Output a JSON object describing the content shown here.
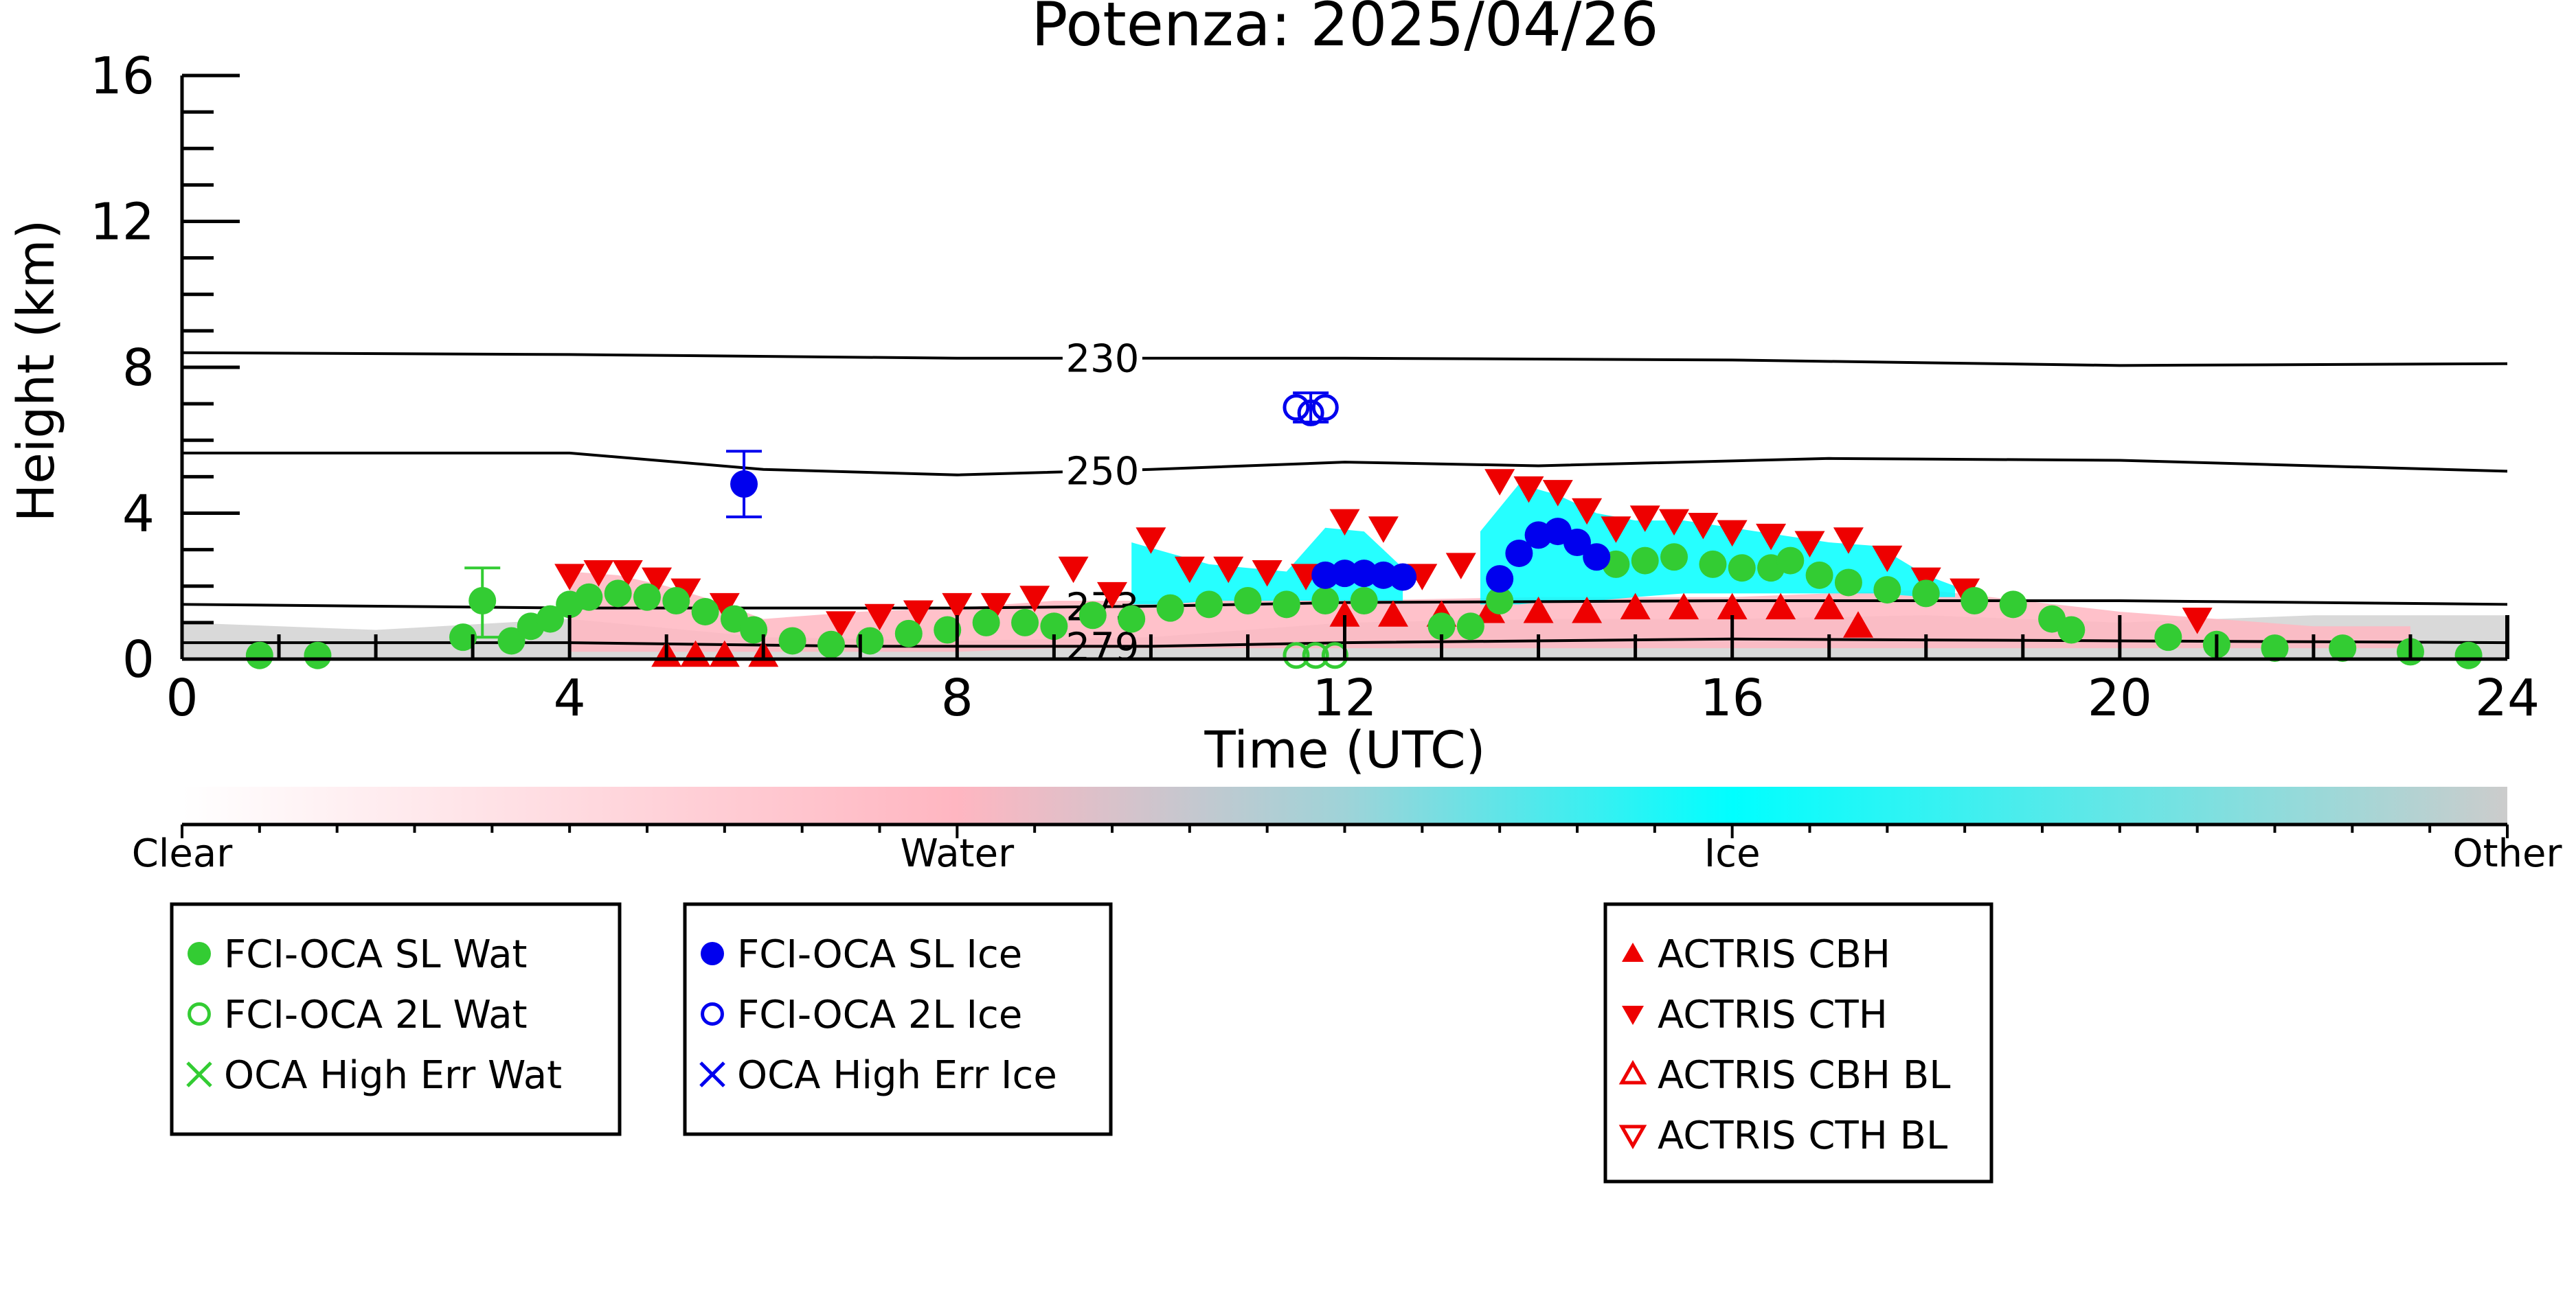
{
  "chart_data": {
    "type": "scatter",
    "title": "Potenza: 2025/04/26",
    "xlabel": "Time (UTC)",
    "ylabel": "Height (km)",
    "xlim": [
      0,
      24
    ],
    "ylim": [
      0,
      16
    ],
    "x_ticks": [
      "0",
      "4",
      "8",
      "12",
      "16",
      "20",
      "24"
    ],
    "y_ticks": [
      "0",
      "4",
      "8",
      "12",
      "16"
    ],
    "colorbar": {
      "labels": [
        "Clear",
        "Water",
        "Ice",
        "Other"
      ],
      "colors": [
        "#ffffff",
        "#ffb6c1",
        "#00ffff",
        "#cccccc"
      ]
    },
    "isotherms": [
      {
        "label": "230",
        "points": [
          [
            0,
            8.4
          ],
          [
            4,
            8.35
          ],
          [
            8,
            8.25
          ],
          [
            12,
            8.25
          ],
          [
            16,
            8.2
          ],
          [
            20,
            8.05
          ],
          [
            24,
            8.1
          ]
        ]
      },
      {
        "label": "250",
        "points": [
          [
            0,
            5.65
          ],
          [
            4,
            5.65
          ],
          [
            6,
            5.2
          ],
          [
            8,
            5.05
          ],
          [
            10,
            5.2
          ],
          [
            12,
            5.4
          ],
          [
            14,
            5.3
          ],
          [
            17,
            5.5
          ],
          [
            20,
            5.45
          ],
          [
            24,
            5.15
          ]
        ]
      },
      {
        "label": "273",
        "points": [
          [
            0,
            1.5
          ],
          [
            4,
            1.4
          ],
          [
            8,
            1.4
          ],
          [
            10,
            1.45
          ],
          [
            12,
            1.55
          ],
          [
            16,
            1.6
          ],
          [
            20,
            1.6
          ],
          [
            24,
            1.5
          ]
        ]
      },
      {
        "label": "279",
        "points": [
          [
            0,
            0.45
          ],
          [
            4,
            0.45
          ],
          [
            7,
            0.35
          ],
          [
            10,
            0.35
          ],
          [
            12,
            0.45
          ],
          [
            16,
            0.55
          ],
          [
            20,
            0.5
          ],
          [
            24,
            0.45
          ]
        ]
      }
    ],
    "series": [
      {
        "name": "FCI-OCA SL Wat",
        "marker": "filled-circle",
        "color": "#33cc33",
        "x": [
          0.8,
          1.4,
          2.9,
          3.1,
          3.4,
          3.6,
          3.8,
          4.0,
          4.2,
          4.5,
          4.8,
          5.1,
          5.4,
          5.7,
          5.9,
          6.3,
          6.7,
          7.1,
          7.5,
          7.9,
          8.3,
          8.7,
          9.0,
          9.4,
          9.8,
          10.2,
          10.6,
          11.0,
          11.4,
          11.8,
          12.2,
          13.0,
          13.3,
          13.6,
          14.8,
          15.1,
          15.4,
          15.8,
          16.1,
          16.4,
          16.6,
          16.9,
          17.2,
          17.6,
          18.0,
          18.5,
          18.9,
          19.3,
          19.5,
          20.5,
          21.0,
          21.6,
          22.3,
          23.0,
          23.6
        ],
        "y": [
          0.1,
          0.1,
          0.6,
          1.6,
          0.5,
          0.9,
          1.1,
          1.5,
          1.7,
          1.8,
          1.7,
          1.6,
          1.3,
          1.1,
          0.8,
          0.5,
          0.4,
          0.5,
          0.7,
          0.8,
          1.0,
          1.0,
          0.9,
          1.2,
          1.1,
          1.4,
          1.5,
          1.6,
          1.5,
          1.6,
          1.6,
          0.9,
          0.9,
          1.6,
          2.6,
          2.7,
          2.8,
          2.6,
          2.5,
          2.5,
          2.7,
          2.3,
          2.1,
          1.9,
          1.8,
          1.6,
          1.5,
          1.1,
          0.8,
          0.6,
          0.4,
          0.3,
          0.3,
          0.2,
          0.1
        ]
      },
      {
        "name": "FCI-OCA 2L Wat",
        "marker": "open-circle",
        "color": "#33cc33",
        "x": [
          11.5,
          11.7,
          11.9
        ],
        "y": [
          0.1,
          0.1,
          0.1
        ]
      },
      {
        "name": "OCA High Err Wat",
        "marker": "x",
        "color": "#33cc33",
        "x": [],
        "y": []
      },
      {
        "name": "FCI-OCA SL Ice",
        "marker": "filled-circle",
        "color": "#0000ee",
        "x": [
          5.8,
          11.8,
          12.0,
          12.2,
          12.4,
          12.6,
          13.6,
          13.8,
          14.0,
          14.2,
          14.4,
          14.6
        ],
        "y": [
          4.8,
          2.3,
          2.35,
          2.35,
          2.3,
          2.25,
          2.2,
          2.9,
          3.4,
          3.5,
          3.2,
          2.8
        ]
      },
      {
        "name": "FCI-OCA 2L Ice",
        "marker": "open-circle",
        "color": "#0000ee",
        "x": [
          11.5,
          11.65,
          11.8
        ],
        "y": [
          6.9,
          6.75,
          6.9
        ]
      },
      {
        "name": "OCA High Err Ice",
        "marker": "x",
        "color": "#0000ee",
        "x": [],
        "y": []
      },
      {
        "name": "ACTRIS CBH",
        "marker": "filled-triangle-up",
        "color": "#ee0000",
        "x": [
          5.0,
          5.3,
          5.6,
          6.0,
          12.0,
          12.5,
          13.0,
          13.5,
          14.0,
          14.5,
          15.0,
          15.5,
          16.0,
          16.5,
          17.0,
          17.3
        ],
        "y": [
          0.1,
          0.1,
          0.1,
          0.1,
          1.2,
          1.2,
          1.2,
          1.3,
          1.3,
          1.3,
          1.4,
          1.4,
          1.4,
          1.4,
          1.4,
          0.9
        ]
      },
      {
        "name": "ACTRIS CTH",
        "marker": "filled-triangle-down",
        "color": "#ee0000",
        "x": [
          4.0,
          4.3,
          4.6,
          4.9,
          5.2,
          5.6,
          6.8,
          7.2,
          7.6,
          8.0,
          8.4,
          8.8,
          9.2,
          9.6,
          10.0,
          10.4,
          10.8,
          11.2,
          11.6,
          12.0,
          12.4,
          12.8,
          13.2,
          13.6,
          13.9,
          14.2,
          14.5,
          14.8,
          15.1,
          15.4,
          15.7,
          16.0,
          16.4,
          16.8,
          17.2,
          17.6,
          18.0,
          18.4,
          20.8
        ],
        "y": [
          2.3,
          2.4,
          2.4,
          2.2,
          1.9,
          1.5,
          1.0,
          1.2,
          1.3,
          1.5,
          1.5,
          1.7,
          2.5,
          1.8,
          3.3,
          2.5,
          2.5,
          2.4,
          2.3,
          3.8,
          3.6,
          2.3,
          2.6,
          4.9,
          4.7,
          4.6,
          4.1,
          3.6,
          3.9,
          3.8,
          3.7,
          3.5,
          3.4,
          3.2,
          3.3,
          2.8,
          2.2,
          1.9,
          1.1
        ]
      },
      {
        "name": "ACTRIS CBH BL",
        "marker": "open-triangle-up",
        "color": "#ee0000",
        "x": [],
        "y": []
      },
      {
        "name": "ACTRIS CTH BL",
        "marker": "open-triangle-down",
        "color": "#ee0000",
        "x": [],
        "y": []
      }
    ],
    "error_bars": [
      {
        "series": "FCI-OCA SL Wat",
        "x": 3.1,
        "low": 0.6,
        "high": 2.5
      },
      {
        "series": "FCI-OCA SL Ice",
        "x": 5.8,
        "low": 3.9,
        "high": 5.7
      },
      {
        "series": "FCI-OCA 2L Ice",
        "x": 11.65,
        "low": 6.5,
        "high": 7.3
      }
    ],
    "regions": [
      {
        "class": "Ice",
        "color": "#00ffff",
        "x": [
          9.8,
          10.2,
          10.6,
          11.0,
          11.4,
          11.8,
          12.2,
          12.6
        ],
        "top": [
          3.2,
          2.9,
          2.6,
          2.5,
          2.4,
          3.6,
          3.5,
          2.5
        ],
        "bottom": [
          1.5,
          1.5,
          1.6,
          1.6,
          1.6,
          1.6,
          1.6,
          1.6
        ]
      },
      {
        "class": "Ice",
        "color": "#00ffff",
        "x": [
          13.4,
          13.8,
          14.2,
          14.6,
          15.0,
          15.5,
          16.0,
          16.5,
          17.0,
          17.5,
          18.0,
          18.3
        ],
        "top": [
          3.5,
          4.8,
          4.5,
          4.0,
          3.8,
          3.8,
          3.6,
          3.4,
          3.2,
          3.1,
          2.3,
          2.0
        ],
        "bottom": [
          1.5,
          1.5,
          1.6,
          1.6,
          1.7,
          1.8,
          1.8,
          1.8,
          1.8,
          1.8,
          1.7,
          1.7
        ]
      },
      {
        "class": "Water",
        "color": "#ffb6c1",
        "x": [
          4.0,
          4.5,
          5.0,
          5.5,
          6.0,
          7.0,
          8.0,
          9.0,
          10.0,
          12.0,
          14.0,
          16.0,
          18.0,
          20.0,
          22.0,
          23.0
        ],
        "top": [
          2.4,
          2.3,
          2.0,
          1.6,
          1.1,
          1.3,
          1.4,
          1.6,
          1.6,
          1.6,
          1.7,
          1.7,
          1.9,
          1.3,
          0.9,
          0.9
        ],
        "bottom": [
          0.2,
          0.2,
          0.2,
          0.2,
          0.2,
          0.2,
          0.2,
          0.3,
          0.3,
          0.3,
          0.3,
          0.3,
          0.3,
          0.3,
          0.3,
          0.3
        ]
      },
      {
        "class": "Other",
        "color": "#cccccc",
        "x": [
          0.0,
          2.0,
          4.0,
          6.0,
          8.0,
          10.0,
          12.0,
          14.0,
          16.0,
          18.0,
          20.0,
          22.0,
          24.0
        ],
        "top": [
          1.0,
          0.8,
          1.1,
          0.6,
          0.5,
          0.6,
          1.0,
          1.1,
          1.1,
          1.2,
          1.0,
          1.2,
          1.2
        ],
        "bottom": [
          0,
          0,
          0,
          0,
          0,
          0,
          0,
          0,
          0,
          0,
          0,
          0,
          0
        ]
      }
    ],
    "legend": [
      [
        "FCI-OCA SL Wat",
        "FCI-OCA 2L Wat",
        "OCA High Err Wat"
      ],
      [
        "FCI-OCA SL Ice",
        "FCI-OCA 2L Ice",
        "OCA High Err Ice"
      ],
      [
        "ACTRIS CBH",
        "ACTRIS CTH",
        "ACTRIS CBH BL",
        "ACTRIS CTH BL"
      ]
    ],
    "legend_placement": "below",
    "grid": false
  }
}
